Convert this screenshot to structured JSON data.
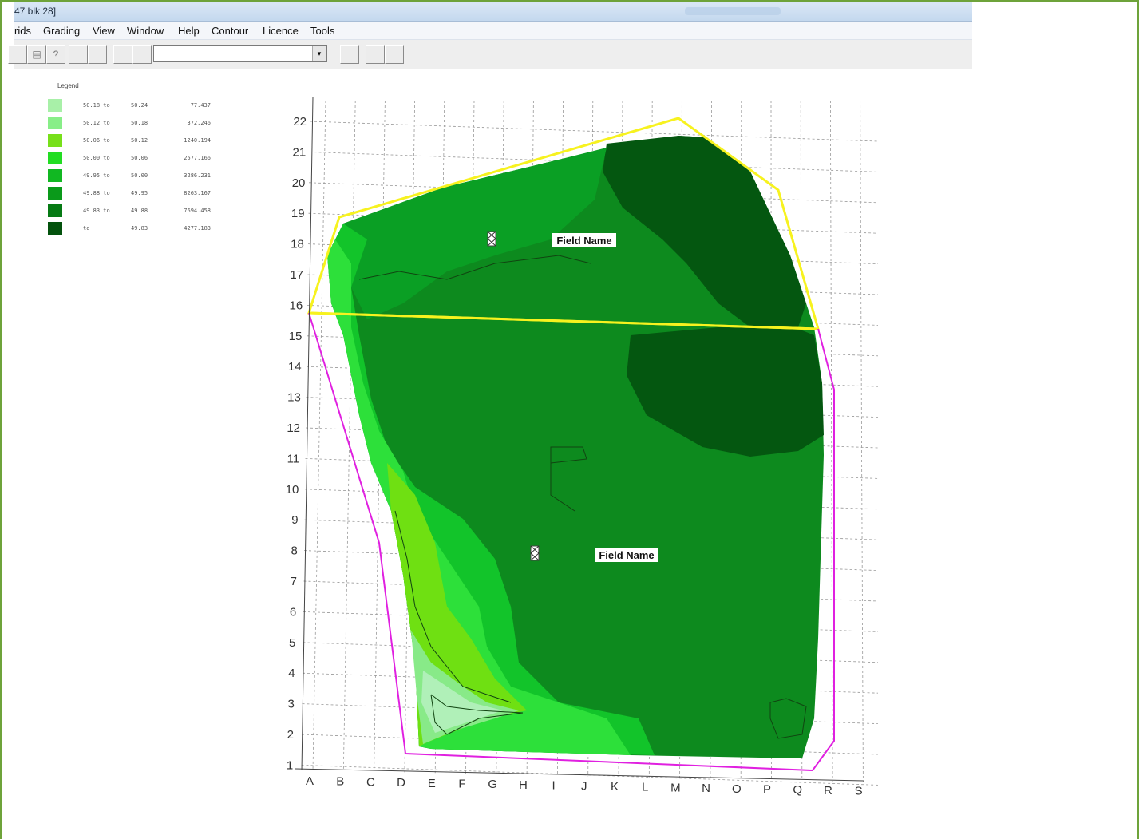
{
  "window": {
    "title": "47 blk 28]"
  },
  "menu": [
    "rids",
    "Grading",
    "View",
    "Window",
    "Help",
    "Contour",
    "Licence",
    "Tools"
  ],
  "toolbar": {
    "combo_value": "",
    "combo_arrow": "▾"
  },
  "legend": {
    "title": "Legend",
    "rows": [
      {
        "color": "#a8f0a8",
        "from": "50.18 to",
        "to": "50.24",
        "area": "77.437"
      },
      {
        "color": "#88ee88",
        "from": "50.12 to",
        "to": "50.18",
        "area": "372.246"
      },
      {
        "color": "#77e01a",
        "from": "50.06 to",
        "to": "50.12",
        "area": "1240.194"
      },
      {
        "color": "#22dd22",
        "from": "50.00 to",
        "to": "50.06",
        "area": "2577.166"
      },
      {
        "color": "#11b822",
        "from": "49.95 to",
        "to": "50.00",
        "area": "3286.231"
      },
      {
        "color": "#0a9a1a",
        "from": "49.88 to",
        "to": "49.95",
        "area": "8263.167"
      },
      {
        "color": "#067a14",
        "from": "49.83 to",
        "to": "49.88",
        "area": "7694.458"
      },
      {
        "color": "#03520d",
        "from": "to",
        "to": "49.83",
        "area": "4277.183"
      }
    ]
  },
  "map": {
    "field_labels": [
      "Field Name",
      "Field Name"
    ],
    "row_labels": [
      "22",
      "21",
      "20",
      "19",
      "18",
      "17",
      "16",
      "15",
      "14",
      "13",
      "12",
      "11",
      "10",
      "9",
      "8",
      "7",
      "6",
      "5",
      "4",
      "3",
      "2",
      "1"
    ],
    "col_labels": [
      "A",
      "B",
      "C",
      "D",
      "E",
      "F",
      "G",
      "H",
      "I",
      "J",
      "K",
      "L",
      "M",
      "N",
      "O",
      "P",
      "Q",
      "R",
      "S"
    ],
    "colors": {
      "yellow_boundary": "#f7f21f",
      "magenta_boundary": "#e020e0",
      "grid": "#999999"
    }
  }
}
